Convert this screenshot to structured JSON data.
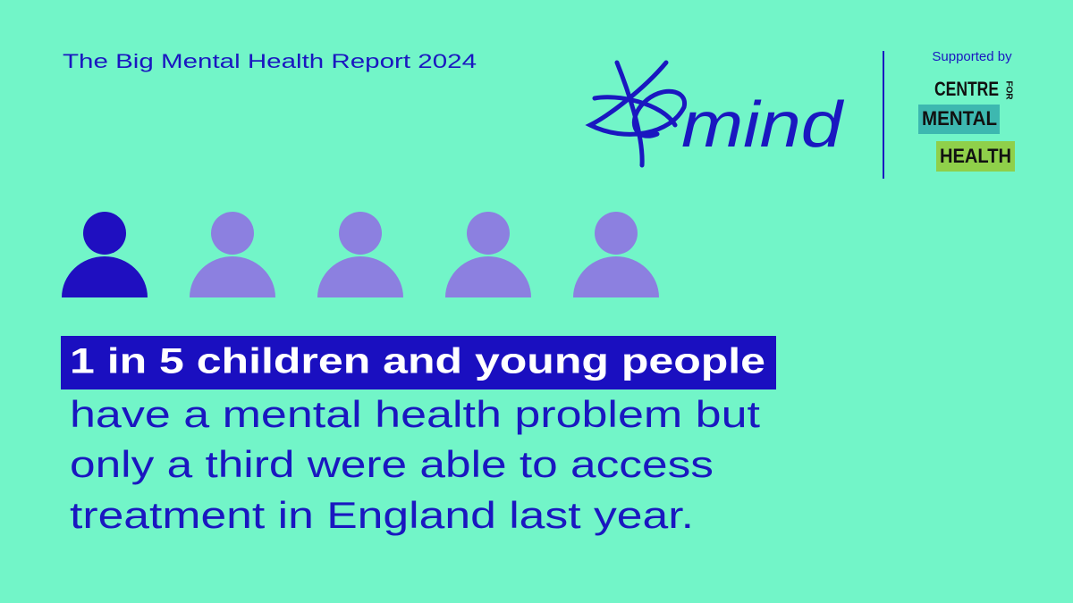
{
  "header": {
    "title": "The Big Mental Health Report 2024"
  },
  "logo": {
    "text": "mind"
  },
  "partner": {
    "supported_by": "Supported by",
    "line1": "CENTRE",
    "line1b": "FOR",
    "line2": "MENTAL",
    "line3": "HEALTH"
  },
  "headline": "1 in 5 children and young people",
  "body": [
    "have a mental health problem but",
    "only a third were able to access",
    "treatment in England last year."
  ]
}
